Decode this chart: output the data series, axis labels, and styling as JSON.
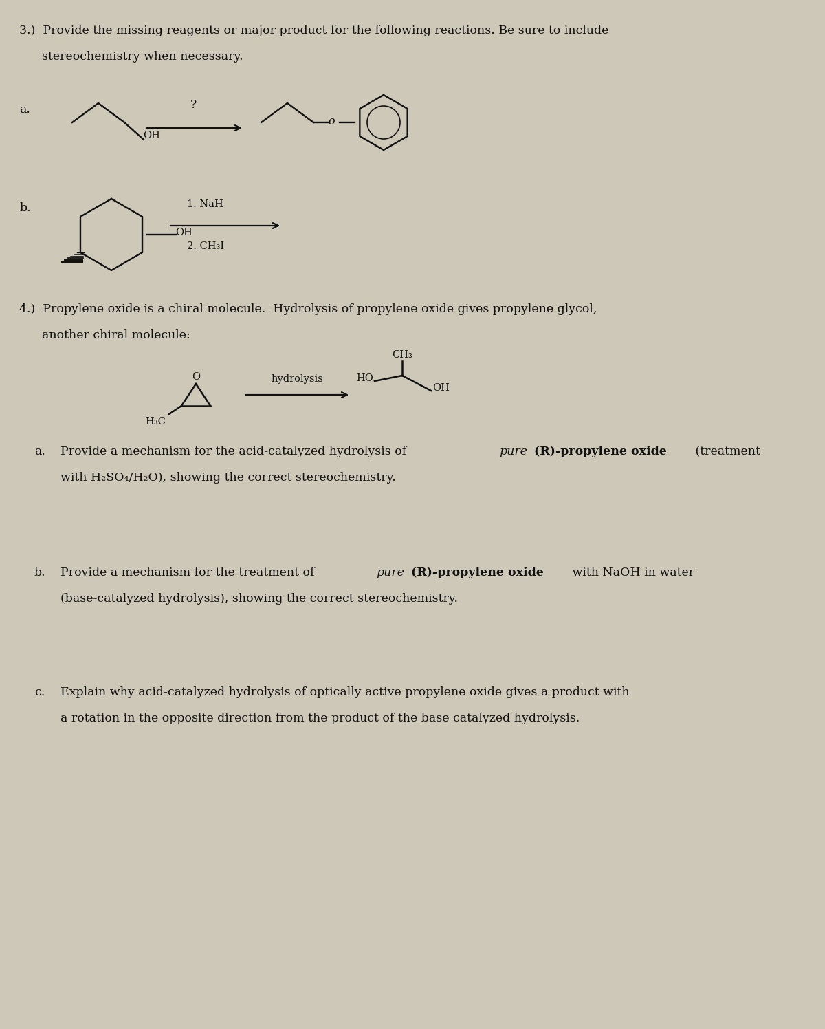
{
  "bg_color": "#cec8b8",
  "text_color": "#111111",
  "figsize": [
    12.0,
    14.96
  ],
  "dpi": 100,
  "q3_line1": "3.)  Provide the missing reagents or major product for the following reactions. Be sure to include",
  "q3_line2": "      stereochemistry when necessary.",
  "q4_line1": "4.)  Propylene oxide is a chiral molecule.  Hydrolysis of propylene oxide gives propylene glycol,",
  "q4_line2": "      another chiral molecule:",
  "q4a_line1_pre": "Provide a mechanism for the acid-catalyzed hydrolysis of ",
  "q4a_line1_italic": "pure",
  "q4a_line1_bold": " (R)-propylene oxide",
  "q4a_line1_post": " (treatment",
  "q4a_line2": "      with H₂SO₄/H₂O), showing the correct stereochemistry.",
  "q4b_line1_pre": "Provide a mechanism for the treatment of ",
  "q4b_line1_italic": "pure",
  "q4b_line1_bold": " (R)-propylene oxide",
  "q4b_line1_post": " with NaOH in water",
  "q4b_line2": "      (base-catalyzed hydrolysis), showing the correct stereochemistry.",
  "q4c_line1": "Explain why acid-catalyzed hydrolysis of optically active propylene oxide gives a product with",
  "q4c_line2": "      a rotation in the opposite direction from the product of the base catalyzed hydrolysis.",
  "fs_main": 12.5,
  "fs_chem": 11.5,
  "fs_small": 10.5
}
